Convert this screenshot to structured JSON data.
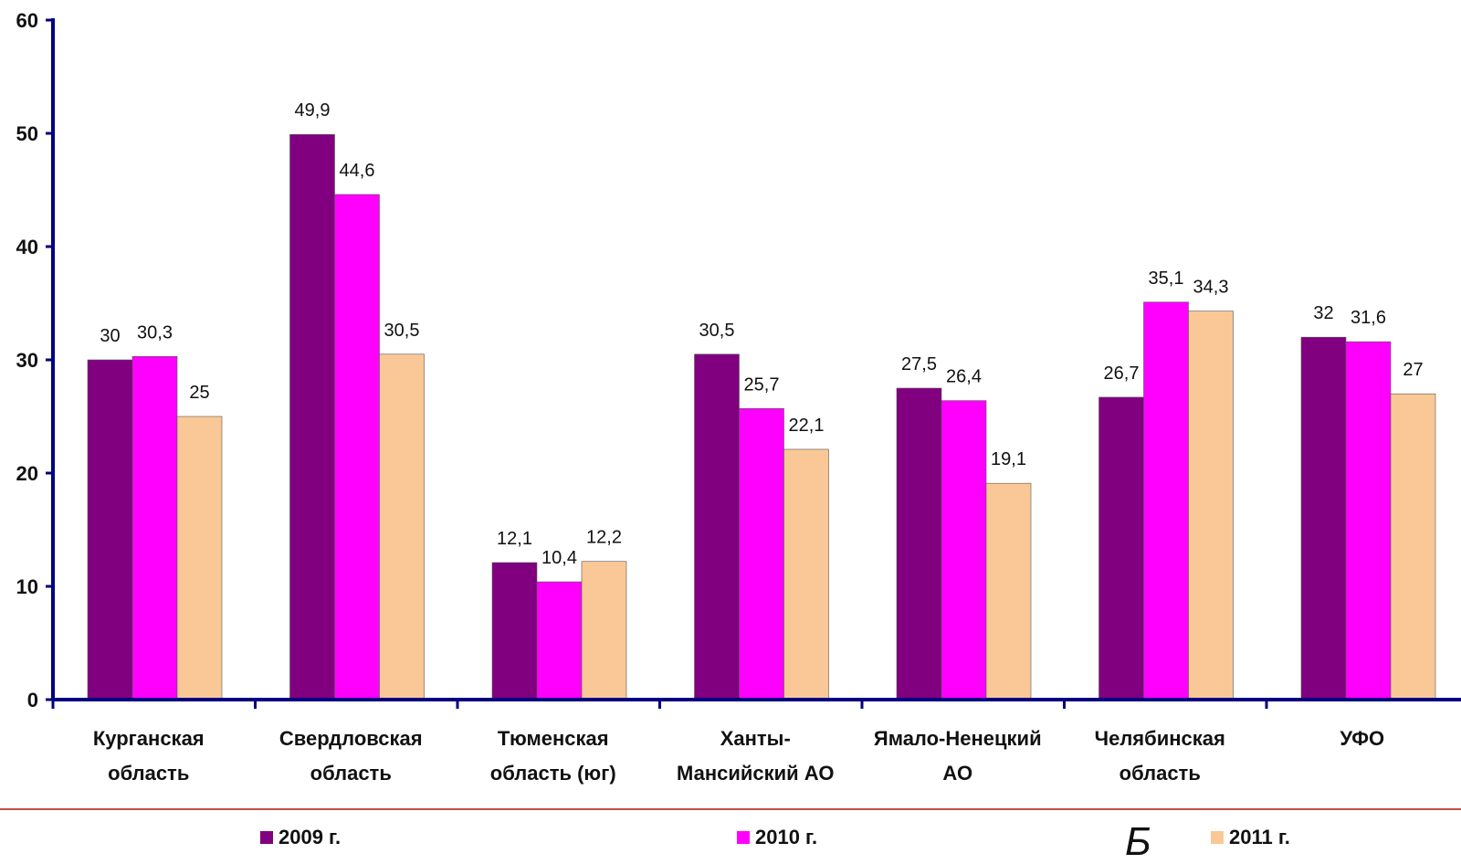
{
  "chart_data": {
    "type": "bar",
    "categories": [
      [
        "Курганская",
        "область"
      ],
      [
        "Свердловская",
        "область"
      ],
      [
        "Тюменская",
        "область (юг)"
      ],
      [
        "Ханты-",
        "Мансийский АО"
      ],
      [
        "Ямало-Ненецкий",
        "АО"
      ],
      [
        "Челябинская",
        "область"
      ],
      [
        "УФО"
      ]
    ],
    "series": [
      {
        "name": "2009 г.",
        "color": "#800080",
        "values": [
          30,
          49.9,
          12.1,
          30.5,
          27.5,
          26.7,
          32
        ],
        "labels": [
          "30",
          "49,9",
          "12,1",
          "30,5",
          "27,5",
          "26,7",
          "32"
        ]
      },
      {
        "name": "2010 г.",
        "color": "#ff00ff",
        "values": [
          30.3,
          44.6,
          10.4,
          25.7,
          26.4,
          35.1,
          31.6
        ],
        "labels": [
          "30,3",
          "44,6",
          "10,4",
          "25,7",
          "26,4",
          "35,1",
          "31,6"
        ]
      },
      {
        "name": "2011 г.",
        "color": "#f9c896",
        "values": [
          25,
          30.5,
          12.2,
          22.1,
          19.1,
          34.3,
          27
        ],
        "labels": [
          "25",
          "30,5",
          "12,2",
          "22,1",
          "19,1",
          "34,3",
          "27"
        ]
      }
    ],
    "yticks": [
      "0",
      "10",
      "20",
      "30",
      "40",
      "50",
      "60"
    ],
    "ylim": [
      0,
      60
    ],
    "axis_color": "#000080",
    "grid": false,
    "legend_position": "bottom"
  },
  "stray_glyph": "Б"
}
